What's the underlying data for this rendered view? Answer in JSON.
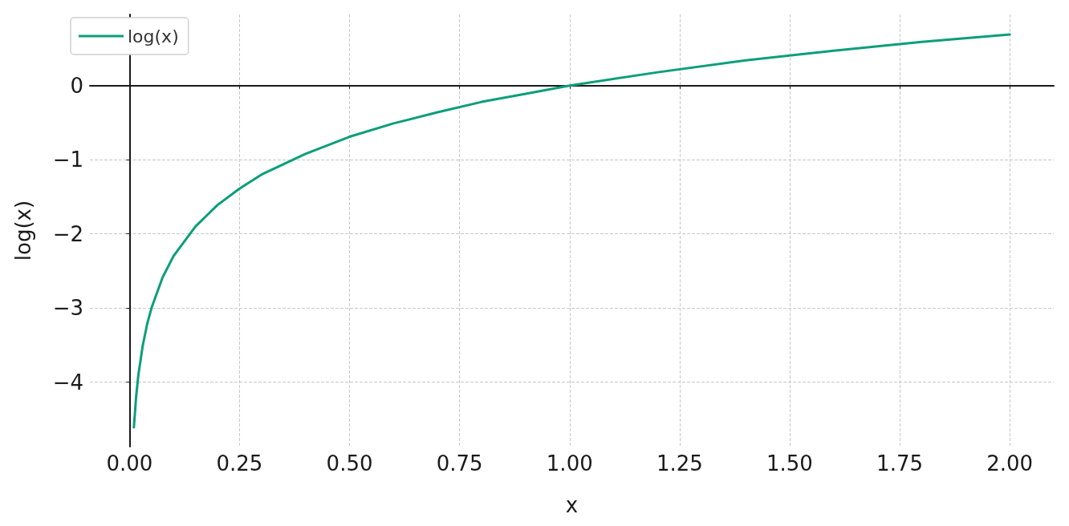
{
  "chart_data": {
    "type": "line",
    "xlabel": "x",
    "ylabel": "log(x)",
    "series": [
      {
        "name": "log(x)",
        "color": "#0b9e7b",
        "x": [
          0.01,
          0.015,
          0.02,
          0.03,
          0.04,
          0.05,
          0.075,
          0.1,
          0.15,
          0.2,
          0.25,
          0.3,
          0.4,
          0.5,
          0.6,
          0.7,
          0.8,
          0.9,
          1.0,
          1.2,
          1.4,
          1.6,
          1.8,
          2.0
        ],
        "values": [
          -4.61,
          -4.2,
          -3.91,
          -3.51,
          -3.22,
          -3.0,
          -2.59,
          -2.3,
          -1.9,
          -1.61,
          -1.39,
          -1.2,
          -0.92,
          -0.69,
          -0.51,
          -0.36,
          -0.22,
          -0.11,
          0,
          0.18,
          0.34,
          0.47,
          0.59,
          0.69
        ]
      }
    ],
    "xlim": [
      -0.09,
      2.1
    ],
    "ylim": [
      -4.87,
      0.96
    ],
    "xticks": [
      {
        "value": 0,
        "label": "0.00"
      },
      {
        "value": 0.25,
        "label": "0.25"
      },
      {
        "value": 0.5,
        "label": "0.50"
      },
      {
        "value": 0.75,
        "label": "0.75"
      },
      {
        "value": 1,
        "label": "1.00"
      },
      {
        "value": 1.25,
        "label": "1.25"
      },
      {
        "value": 1.5,
        "label": "1.50"
      },
      {
        "value": 1.75,
        "label": "1.75"
      },
      {
        "value": 2,
        "label": "2.00"
      }
    ],
    "yticks": [
      {
        "value": -4,
        "label": "−4"
      },
      {
        "value": -3,
        "label": "−3"
      },
      {
        "value": -2,
        "label": "−2"
      },
      {
        "value": -1,
        "label": "−1"
      },
      0
    ],
    "grid": true,
    "legend": "top left",
    "marker": "none",
    "line_style": "solid"
  }
}
